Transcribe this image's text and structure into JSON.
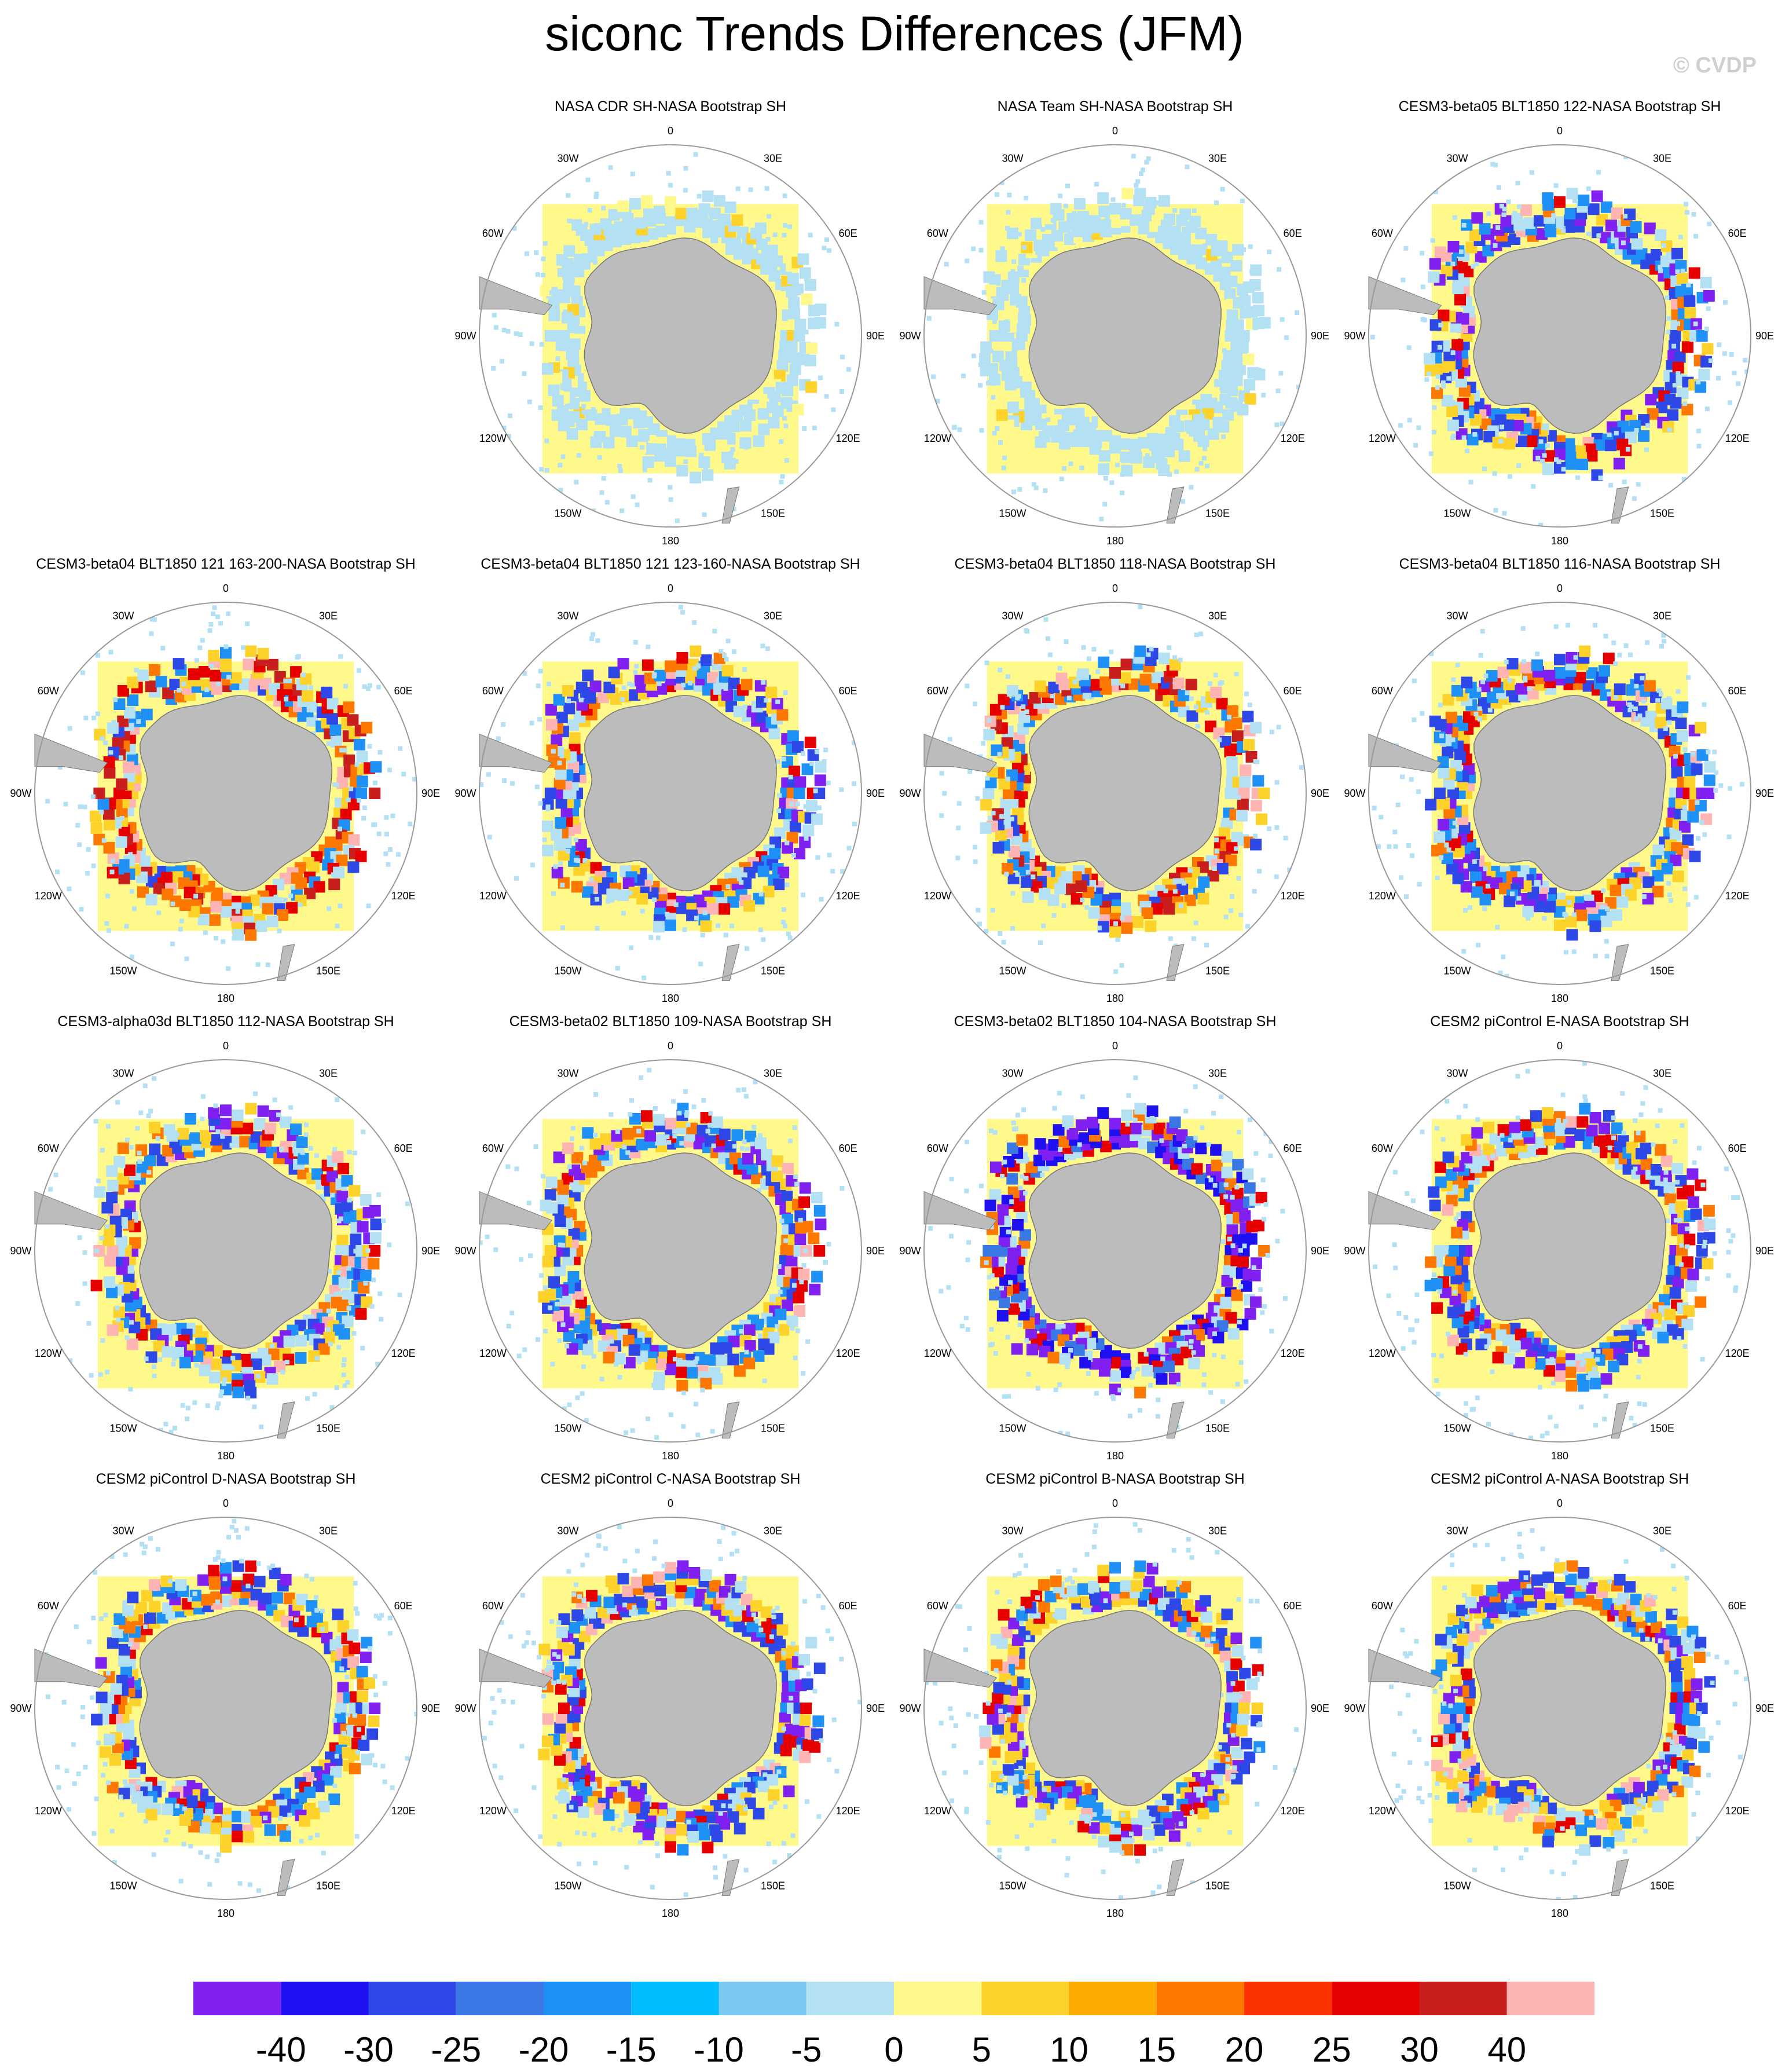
{
  "figure": {
    "title": "siconc Trends Differences (JFM)",
    "watermark": "© CVDP"
  },
  "longitude_labels": [
    "0",
    "30E",
    "60E",
    "90E",
    "120E",
    "150E",
    "180",
    "150W",
    "120W",
    "90W",
    "60W",
    "30W"
  ],
  "chart_data": {
    "type": "heatmap",
    "projection": "south polar stereographic",
    "variable": "siconc",
    "season": "JFM",
    "panels": [
      {
        "title": "NASA CDR SH-NASA Bootstrap SH",
        "pattern": "weak"
      },
      {
        "title": "NASA Team SH-NASA Bootstrap SH",
        "pattern": "weak"
      },
      {
        "title": "CESM3-beta05 BLT1850 122-NASA Bootstrap SH",
        "pattern": "mixed"
      },
      {
        "title": "CESM3-beta04 BLT1850 121 163-200-NASA Bootstrap SH",
        "pattern": "positive"
      },
      {
        "title": "CESM3-beta04 BLT1850 121 123-160-NASA Bootstrap SH",
        "pattern": "mixed"
      },
      {
        "title": "CESM3-beta04 BLT1850 118-NASA Bootstrap SH",
        "pattern": "positive"
      },
      {
        "title": "CESM3-beta04 BLT1850 116-NASA Bootstrap SH",
        "pattern": "mixed"
      },
      {
        "title": "CESM3-alpha03d BLT1850 112-NASA Bootstrap SH",
        "pattern": "mixed"
      },
      {
        "title": "CESM3-beta02 BLT1850 109-NASA Bootstrap SH",
        "pattern": "mixed"
      },
      {
        "title": "CESM3-beta02 BLT1850 104-NASA Bootstrap SH",
        "pattern": "negative"
      },
      {
        "title": "CESM2 piControl E-NASA Bootstrap SH",
        "pattern": "mixed"
      },
      {
        "title": "CESM2 piControl D-NASA Bootstrap SH",
        "pattern": "mixed"
      },
      {
        "title": "CESM2 piControl C-NASA Bootstrap SH",
        "pattern": "mixed"
      },
      {
        "title": "CESM2 piControl B-NASA Bootstrap SH",
        "pattern": "mixed"
      },
      {
        "title": "CESM2 piControl A-NASA Bootstrap SH",
        "pattern": "mixed"
      }
    ],
    "colorbar": {
      "levels": [
        "-40",
        "-30",
        "-25",
        "-20",
        "-15",
        "-10",
        "-5",
        "0",
        "5",
        "10",
        "15",
        "20",
        "25",
        "30",
        "40"
      ],
      "colors": [
        "#8020f0",
        "#1e10f0",
        "#2d48e6",
        "#3a78e6",
        "#1e90f6",
        "#00bcfa",
        "#78c8f0",
        "#b4e0f4",
        "#fff98c",
        "#fdd22a",
        "#fcaa00",
        "#fc7800",
        "#fc3200",
        "#e60000",
        "#c81e1e",
        "#ffb4b4"
      ]
    }
  }
}
